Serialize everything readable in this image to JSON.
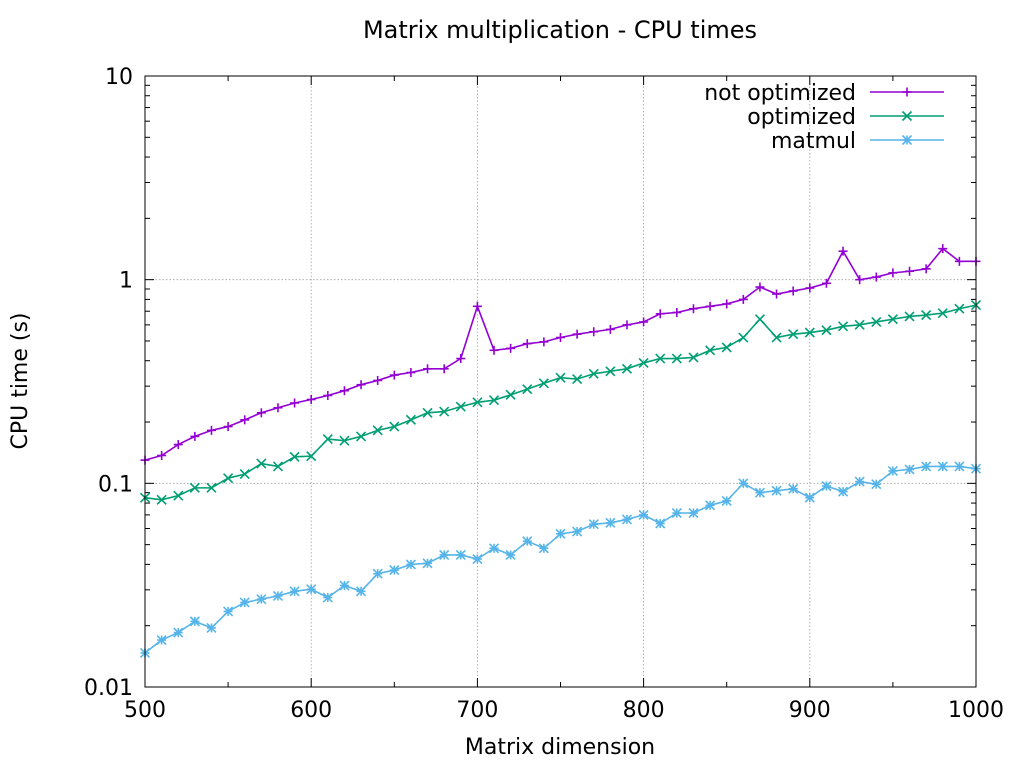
{
  "chart_data": {
    "type": "line",
    "title": "Matrix multiplication - CPU times",
    "xlabel": "Matrix dimension",
    "ylabel": "CPU time (s)",
    "xlim": [
      500,
      1000
    ],
    "ylim": [
      0.01,
      10
    ],
    "yscale": "log",
    "grid": true,
    "legend_position": "top-right",
    "x_ticks": [
      500,
      600,
      700,
      800,
      900,
      1000
    ],
    "y_ticks": [
      0.01,
      0.1,
      1,
      10
    ],
    "x_tick_labels": [
      "500",
      "600",
      "700",
      "800",
      "900",
      "1000"
    ],
    "y_tick_labels": [
      "0.01",
      "0.1",
      "1",
      "10"
    ],
    "x": [
      500,
      510,
      520,
      530,
      540,
      550,
      560,
      570,
      580,
      590,
      600,
      610,
      620,
      630,
      640,
      650,
      660,
      670,
      680,
      690,
      700,
      710,
      720,
      730,
      740,
      750,
      760,
      770,
      780,
      790,
      800,
      810,
      820,
      830,
      840,
      850,
      860,
      870,
      880,
      890,
      900,
      910,
      920,
      930,
      940,
      950,
      960,
      970,
      980,
      990,
      1000
    ],
    "series": [
      {
        "name": "not optimized",
        "color": "#9400d3",
        "marker": "plus",
        "values": [
          0.13,
          0.137,
          0.155,
          0.17,
          0.182,
          0.19,
          0.205,
          0.222,
          0.235,
          0.248,
          0.258,
          0.27,
          0.285,
          0.305,
          0.32,
          0.34,
          0.35,
          0.365,
          0.365,
          0.41,
          0.74,
          0.45,
          0.46,
          0.485,
          0.495,
          0.52,
          0.54,
          0.555,
          0.57,
          0.6,
          0.62,
          0.68,
          0.69,
          0.72,
          0.74,
          0.76,
          0.8,
          0.92,
          0.85,
          0.88,
          0.91,
          0.96,
          1.38,
          1.0,
          1.03,
          1.08,
          1.1,
          1.13,
          1.42,
          1.23,
          1.23
        ]
      },
      {
        "name": "optimized",
        "color": "#009e73",
        "marker": "x",
        "values": [
          0.085,
          0.083,
          0.087,
          0.095,
          0.095,
          0.106,
          0.111,
          0.125,
          0.121,
          0.135,
          0.136,
          0.165,
          0.162,
          0.17,
          0.182,
          0.19,
          0.205,
          0.222,
          0.225,
          0.238,
          0.25,
          0.256,
          0.272,
          0.29,
          0.31,
          0.33,
          0.325,
          0.345,
          0.355,
          0.365,
          0.39,
          0.41,
          0.41,
          0.415,
          0.45,
          0.465,
          0.52,
          0.64,
          0.52,
          0.54,
          0.55,
          0.565,
          0.59,
          0.6,
          0.62,
          0.64,
          0.66,
          0.67,
          0.685,
          0.72,
          0.75
        ]
      },
      {
        "name": "matmul",
        "color": "#56b4e9",
        "marker": "star",
        "values": [
          0.0147,
          0.017,
          0.0185,
          0.021,
          0.0195,
          0.0235,
          0.026,
          0.027,
          0.028,
          0.0295,
          0.0302,
          0.0275,
          0.0315,
          0.0295,
          0.036,
          0.0375,
          0.04,
          0.0405,
          0.0445,
          0.0445,
          0.0425,
          0.048,
          0.0445,
          0.052,
          0.048,
          0.0565,
          0.058,
          0.063,
          0.064,
          0.0665,
          0.07,
          0.0635,
          0.0715,
          0.0715,
          0.078,
          0.082,
          0.1,
          0.09,
          0.092,
          0.094,
          0.085,
          0.097,
          0.091,
          0.102,
          0.099,
          0.115,
          0.117,
          0.121,
          0.121,
          0.121,
          0.118
        ]
      }
    ]
  }
}
